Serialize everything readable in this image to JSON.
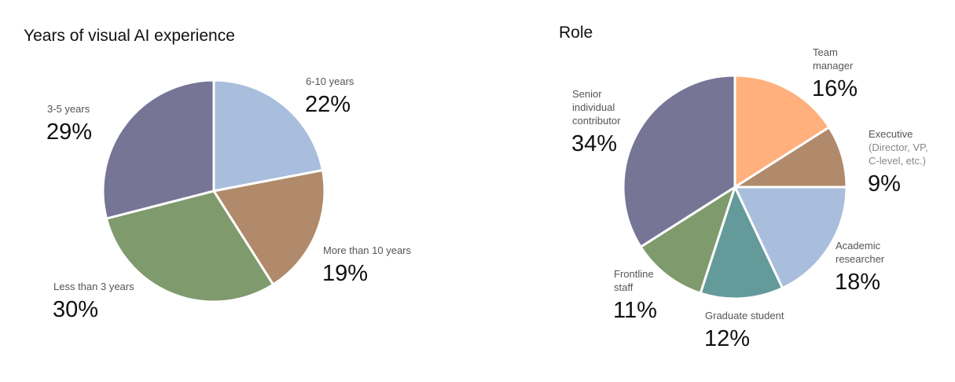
{
  "chart_data": [
    {
      "type": "pie",
      "title": "Years of visual AI experience",
      "categories": [
        "6-10 years",
        "More than 10 years",
        "Less than 3 years",
        "3-5 years"
      ],
      "values": [
        22,
        19,
        30,
        29
      ],
      "value_labels": [
        "22%",
        "19%",
        "30%",
        "29%"
      ],
      "colors": [
        "#a9bedc",
        "#b08a6a",
        "#7f9a6c",
        "#767596"
      ]
    },
    {
      "type": "pie",
      "title": "Role",
      "categories": [
        "Team manager",
        "Executive",
        "Academic researcher",
        "Graduate student",
        "Frontline staff",
        "Senior individual contributor"
      ],
      "category_notes": {
        "1": "(Director, VP, C-level, etc.)"
      },
      "values": [
        16,
        9,
        18,
        12,
        11,
        34
      ],
      "value_labels": [
        "16%",
        "9%",
        "18%",
        "12%",
        "11%",
        "34%"
      ],
      "colors": [
        "#ffb07c",
        "#b08a6a",
        "#a9bedc",
        "#659a9a",
        "#7f9a6c",
        "#767596"
      ]
    }
  ]
}
